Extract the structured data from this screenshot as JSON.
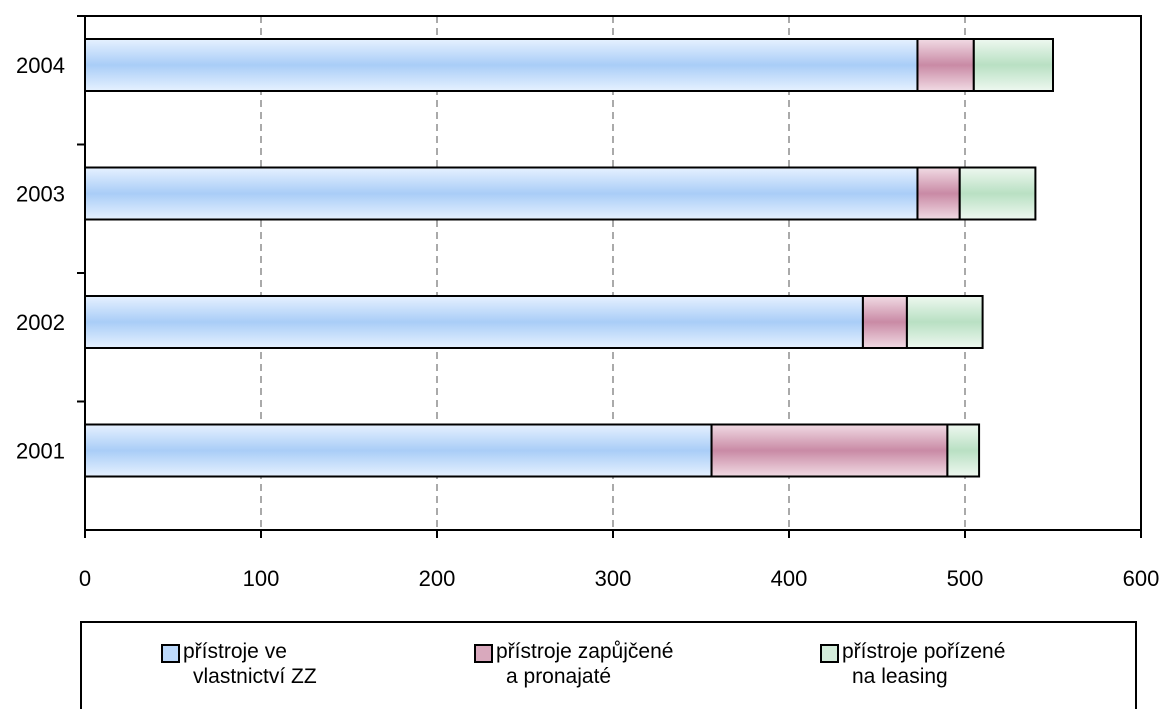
{
  "chart_data": {
    "type": "bar",
    "orientation": "horizontal",
    "stacked": true,
    "categories": [
      "2004",
      "2003",
      "2002",
      "2001"
    ],
    "series": [
      {
        "name": "přístroje ve vlastnictví ZZ",
        "name_lines": [
          "přístroje ve",
          "vlastnictví ZZ"
        ],
        "color": "#bcd9fb",
        "values": [
          473,
          473,
          442,
          356
        ]
      },
      {
        "name": "přístroje zapůjčené a pronajaté",
        "name_lines": [
          "přístroje zapůjčené",
          "a pronajaté"
        ],
        "color": "#d9a9bd",
        "values": [
          32,
          24,
          25,
          134
        ]
      },
      {
        "name": "přístroje pořízené na leasing",
        "name_lines": [
          "přístroje pořízené",
          "na leasing"
        ],
        "color": "#d3ecda",
        "values": [
          45,
          43,
          43,
          18
        ]
      }
    ],
    "xlim": [
      0,
      600
    ],
    "x_ticks": [
      "0",
      "100",
      "200",
      "300",
      "400",
      "500",
      "600"
    ],
    "grid": "vertical-dashed",
    "legend_position": "bottom"
  }
}
